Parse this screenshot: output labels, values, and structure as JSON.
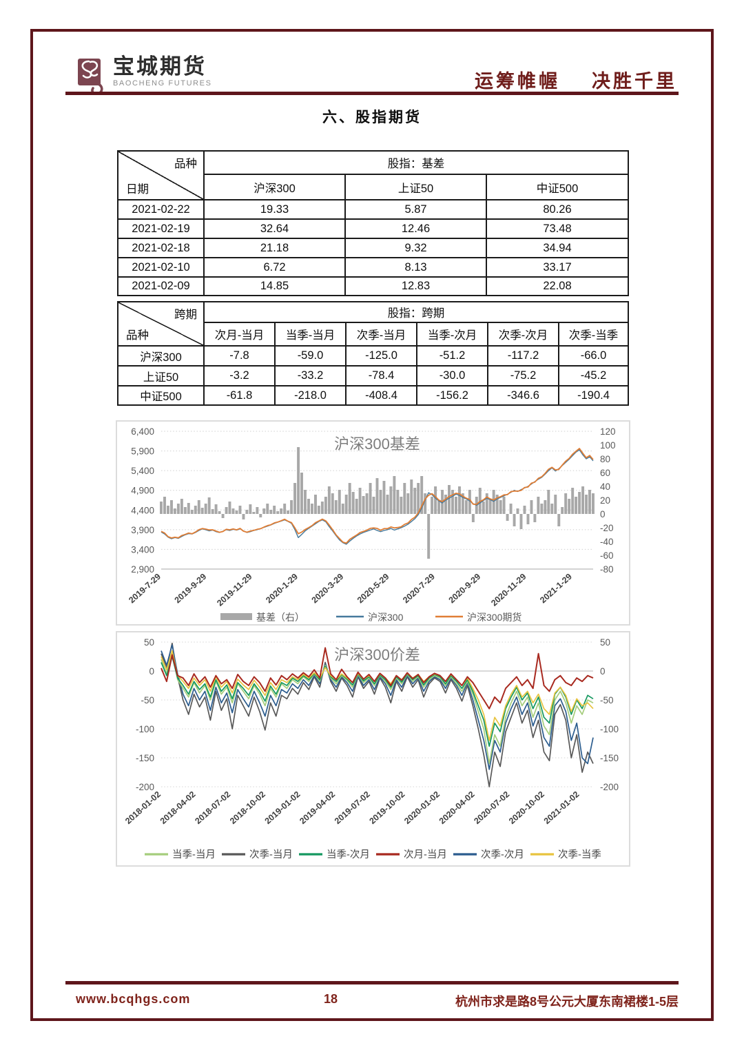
{
  "page": {
    "section_title": "六、股指期货"
  },
  "header": {
    "logo_cn": "宝城期货",
    "logo_en": "BAOCHENG FUTURES",
    "slogan_left": "运筹帷幄",
    "slogan_right": "决胜千里"
  },
  "footer": {
    "website": "www.bcqhgs.com",
    "page_number": "18",
    "address": "杭州市求是路8号公元大厦东南裙楼1-5层"
  },
  "table_basis": {
    "corner_top": "品种",
    "corner_bottom": "日期",
    "span_header": "股指：基差",
    "columns": [
      "沪深300",
      "上证50",
      "中证500"
    ],
    "rows": [
      {
        "date": "2021-02-22",
        "v": [
          "19.33",
          "5.87",
          "80.26"
        ]
      },
      {
        "date": "2021-02-19",
        "v": [
          "32.64",
          "12.46",
          "73.48"
        ]
      },
      {
        "date": "2021-02-18",
        "v": [
          "21.18",
          "9.32",
          "34.94"
        ]
      },
      {
        "date": "2021-02-10",
        "v": [
          "6.72",
          "8.13",
          "33.17"
        ]
      },
      {
        "date": "2021-02-09",
        "v": [
          "14.85",
          "12.83",
          "22.08"
        ]
      }
    ]
  },
  "table_spread": {
    "corner_top": "跨期",
    "corner_bottom": "品种",
    "span_header": "股指：跨期",
    "columns": [
      "次月-当月",
      "当季-当月",
      "次季-当月",
      "当季-次月",
      "次季-次月",
      "次季-当季"
    ],
    "rows": [
      {
        "name": "沪深300",
        "v": [
          "-7.8",
          "-59.0",
          "-125.0",
          "-51.2",
          "-117.2",
          "-66.0"
        ]
      },
      {
        "name": "上证50",
        "v": [
          "-3.2",
          "-33.2",
          "-78.4",
          "-30.0",
          "-75.2",
          "-45.2"
        ]
      },
      {
        "name": "中证500",
        "v": [
          "-61.8",
          "-218.0",
          "-408.4",
          "-156.2",
          "-346.6",
          "-190.4"
        ]
      }
    ]
  },
  "chart_data": [
    {
      "type": "bar+line",
      "title": "沪深300基差",
      "left_axis": {
        "min": 2900,
        "max": 6400,
        "ticks": [
          6400,
          5900,
          5400,
          4900,
          4400,
          3900,
          3400,
          2900
        ],
        "labels": [
          "6,400",
          "5,900",
          "5,400",
          "4,900",
          "4,400",
          "3,900",
          "3,400",
          "2,900"
        ]
      },
      "right_axis": {
        "min": -80,
        "max": 120,
        "ticks": [
          120,
          100,
          80,
          60,
          40,
          20,
          0,
          -20,
          -40,
          -60,
          -80
        ]
      },
      "x_ticks": [
        "2019-7-29",
        "2019-9-29",
        "2019-11-29",
        "2020-1-29",
        "2020-3-29",
        "2020-5-29",
        "2020-7-29",
        "2020-9-29",
        "2020-11-29",
        "2021-1-29"
      ],
      "legend": [
        {
          "label": "基差（右）",
          "color": "#a8a8a8",
          "swatch": "bar"
        },
        {
          "label": "沪深300",
          "color": "#45799c",
          "swatch": "line"
        },
        {
          "label": "沪深300期货",
          "color": "#e07e35",
          "swatch": "line"
        }
      ],
      "series_hs300": [
        3840,
        3790,
        3710,
        3670,
        3700,
        3680,
        3730,
        3770,
        3800,
        3790,
        3830,
        3880,
        3920,
        3900,
        3870,
        3890,
        3850,
        3830,
        3860,
        3900,
        3880,
        3910,
        3890,
        3920,
        3870,
        3830,
        3850,
        3880,
        3900,
        3930,
        3960,
        3990,
        4020,
        4060,
        4090,
        4120,
        4150,
        4110,
        4060,
        3900,
        3700,
        3780,
        3870,
        3930,
        3990,
        4050,
        4110,
        4150,
        4100,
        3980,
        3870,
        3750,
        3640,
        3570,
        3530,
        3610,
        3680,
        3740,
        3790,
        3830,
        3860,
        3890,
        3920,
        3880,
        3850,
        3880,
        3900,
        3930,
        3890,
        3920,
        3950,
        3990,
        4040,
        4110,
        4180,
        4280,
        4450,
        4650,
        4840,
        4790,
        4700,
        4630,
        4580,
        4650,
        4700,
        4750,
        4800,
        4770,
        4720,
        4680,
        4630,
        4560,
        4520,
        4580,
        4640,
        4700,
        4660,
        4620,
        4680,
        4720,
        4760,
        4800,
        4850,
        4900,
        4870,
        4920,
        4960,
        5000,
        5060,
        5120,
        5180,
        5230,
        5310,
        5400,
        5470,
        5390,
        5450,
        5530,
        5610,
        5690,
        5780,
        5870,
        5930,
        5800,
        5700,
        5750,
        5650
      ],
      "series_basis": [
        18,
        25,
        12,
        20,
        8,
        15,
        22,
        10,
        16,
        6,
        12,
        20,
        9,
        15,
        24,
        7,
        14,
        4,
        -6,
        10,
        18,
        8,
        5,
        12,
        -8,
        6,
        14,
        3,
        10,
        -5,
        8,
        15,
        6,
        12,
        4,
        8,
        15,
        5,
        20,
        45,
        97,
        60,
        35,
        22,
        15,
        28,
        12,
        18,
        25,
        40,
        30,
        20,
        35,
        15,
        28,
        45,
        32,
        22,
        38,
        26,
        30,
        45,
        25,
        52,
        35,
        48,
        28,
        40,
        55,
        35,
        25,
        45,
        30,
        50,
        38,
        45,
        55,
        30,
        -65,
        25,
        40,
        20,
        35,
        28,
        42,
        35,
        25,
        40,
        30,
        20,
        35,
        -12,
        25,
        38,
        18,
        30,
        22,
        35,
        28,
        20,
        25,
        -10,
        15,
        -18,
        8,
        -22,
        12,
        -15,
        20,
        -12,
        25,
        15,
        20,
        35,
        15,
        28,
        -18,
        10,
        30,
        22,
        38,
        25,
        32,
        40,
        28,
        35,
        30
      ]
    },
    {
      "type": "line",
      "title": "沪深300价差",
      "y_axis": {
        "min": -200,
        "max": 50,
        "ticks": [
          50,
          0,
          -50,
          -100,
          -150,
          -200
        ]
      },
      "x_ticks": [
        "2018-01-02",
        "2018-04-02",
        "2018-07-02",
        "2018-10-02",
        "2019-01-02",
        "2019-04-02",
        "2019-07-02",
        "2019-10-02",
        "2020-01-02",
        "2020-04-02",
        "2020-07-02",
        "2020-10-02",
        "2021-01-02"
      ],
      "draw_order": [
        1,
        4,
        0,
        2,
        5,
        3
      ],
      "series": [
        {
          "name": "当季-当月",
          "color": "#a5cd7c",
          "values": [
            20,
            -5,
            32,
            -15,
            -30,
            -45,
            -20,
            -38,
            -25,
            -50,
            -18,
            -40,
            -28,
            -55,
            -22,
            -35,
            -48,
            -25,
            -40,
            -60,
            -30,
            -45,
            -22,
            -30,
            -15,
            -22,
            -10,
            -18,
            -5,
            -18,
            10,
            -12,
            -22,
            -8,
            -16,
            -28,
            -6,
            -20,
            -12,
            -25,
            -8,
            -18,
            -32,
            -12,
            -22,
            -6,
            -18,
            -10,
            -28,
            -15,
            -8,
            -12,
            -25,
            -10,
            -22,
            -35,
            -18,
            -40,
            -70,
            -100,
            -160,
            -110,
            -130,
            -80,
            -55,
            -35,
            -60,
            -45,
            -80,
            -55,
            -95,
            -110,
            -50,
            -35,
            -55,
            -90,
            -60,
            -75,
            -50,
            -55
          ]
        },
        {
          "name": "次季-当月",
          "color": "#585858",
          "values": [
            30,
            5,
            48,
            -10,
            -50,
            -75,
            -40,
            -62,
            -45,
            -85,
            -35,
            -68,
            -48,
            -100,
            -42,
            -60,
            -78,
            -45,
            -70,
            -102,
            -55,
            -78,
            -42,
            -48,
            -30,
            -40,
            -20,
            -32,
            -10,
            -28,
            15,
            -18,
            -35,
            -12,
            -25,
            -45,
            -10,
            -30,
            -18,
            -40,
            -12,
            -28,
            -55,
            -18,
            -35,
            -10,
            -28,
            -15,
            -45,
            -22,
            -12,
            -18,
            -38,
            -15,
            -30,
            -52,
            -25,
            -60,
            -100,
            -145,
            -200,
            -140,
            -165,
            -105,
            -80,
            -55,
            -90,
            -68,
            -115,
            -85,
            -140,
            -155,
            -75,
            -58,
            -85,
            -150,
            -110,
            -175,
            -140,
            -160
          ]
        },
        {
          "name": "当季-次月",
          "color": "#15985f",
          "values": [
            15,
            -8,
            25,
            -12,
            -25,
            -40,
            -18,
            -32,
            -22,
            -45,
            -15,
            -35,
            -24,
            -48,
            -20,
            -30,
            -42,
            -22,
            -35,
            -52,
            -26,
            -40,
            -20,
            -25,
            -12,
            -18,
            -8,
            -15,
            -4,
            -15,
            8,
            -10,
            -18,
            -6,
            -14,
            -24,
            -5,
            -17,
            -10,
            -22,
            -7,
            -15,
            -28,
            -10,
            -19,
            -5,
            -15,
            -8,
            -24,
            -12,
            -6,
            -10,
            -22,
            -8,
            -18,
            -30,
            -15,
            -35,
            -60,
            -85,
            -130,
            -90,
            -105,
            -65,
            -45,
            -28,
            -50,
            -38,
            -65,
            -45,
            -80,
            -90,
            -40,
            -28,
            -45,
            -75,
            -50,
            -65,
            -42,
            -48
          ]
        },
        {
          "name": "次月-当月",
          "color": "#a8291f",
          "values": [
            5,
            -18,
            28,
            -8,
            -12,
            -25,
            -5,
            -20,
            -10,
            -28,
            -8,
            -22,
            -15,
            -30,
            -6,
            -18,
            -25,
            -10,
            -20,
            -35,
            -12,
            -24,
            -8,
            -15,
            -5,
            -12,
            -3,
            -10,
            2,
            -12,
            40,
            -5,
            -15,
            3,
            -10,
            -20,
            -2,
            -14,
            -6,
            -18,
            -4,
            -12,
            -25,
            -8,
            -16,
            -3,
            -13,
            -6,
            -20,
            -10,
            -4,
            -8,
            -18,
            -5,
            -15,
            -25,
            -10,
            -20,
            -35,
            -50,
            -65,
            -45,
            -55,
            -30,
            -20,
            -10,
            -25,
            -15,
            -30,
            30,
            -25,
            -35,
            -15,
            -8,
            -20,
            -25,
            -12,
            -18,
            -8,
            -12
          ]
        },
        {
          "name": "次季-次月",
          "color": "#2b5c8e",
          "values": [
            35,
            10,
            45,
            -5,
            -40,
            -60,
            -30,
            -50,
            -35,
            -68,
            -28,
            -55,
            -38,
            -72,
            -32,
            -48,
            -62,
            -35,
            -55,
            -78,
            -42,
            -60,
            -32,
            -38,
            -22,
            -30,
            -15,
            -25,
            -8,
            -22,
            12,
            -15,
            -28,
            -10,
            -20,
            -35,
            -8,
            -25,
            -15,
            -32,
            -10,
            -22,
            -42,
            -15,
            -28,
            -8,
            -22,
            -12,
            -35,
            -18,
            -10,
            -15,
            -30,
            -12,
            -25,
            -42,
            -20,
            -50,
            -85,
            -120,
            -170,
            -120,
            -140,
            -90,
            -65,
            -45,
            -75,
            -55,
            -95,
            -70,
            -115,
            -130,
            -60,
            -48,
            -70,
            -120,
            -90,
            -150,
            -160,
            -115
          ]
        },
        {
          "name": "次季-当季",
          "color": "#e8c33e",
          "values": [
            25,
            2,
            35,
            -8,
            -18,
            -30,
            -12,
            -25,
            -15,
            -35,
            -10,
            -28,
            -18,
            -38,
            -14,
            -24,
            -32,
            -16,
            -28,
            -42,
            -20,
            -32,
            -15,
            -20,
            -10,
            -15,
            -6,
            -12,
            -3,
            -12,
            6,
            -8,
            -15,
            -5,
            -12,
            -20,
            -4,
            -14,
            -8,
            -18,
            -5,
            -12,
            -22,
            -8,
            -15,
            -4,
            -12,
            -6,
            -18,
            -10,
            -5,
            -8,
            -18,
            -6,
            -15,
            -25,
            -12,
            -30,
            -50,
            -75,
            -120,
            -80,
            -95,
            -60,
            -40,
            -25,
            -45,
            -35,
            -55,
            -40,
            -65,
            -75,
            -38,
            -28,
            -42,
            -70,
            -48,
            -60,
            -55,
            -65
          ]
        }
      ]
    }
  ]
}
